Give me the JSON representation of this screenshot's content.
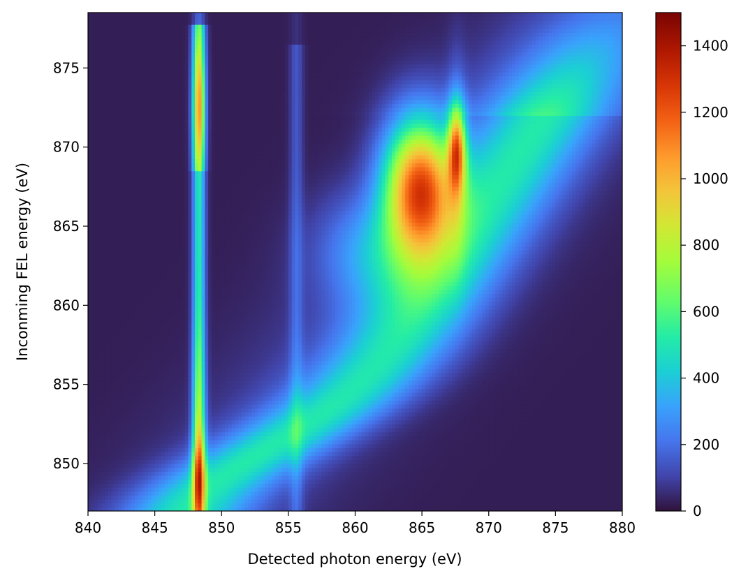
{
  "chart_data": {
    "type": "heatmap",
    "title": "",
    "xlabel": "Detected photon energy (eV)",
    "ylabel": "Inconming FEL energy (eV)",
    "xlim": [
      840,
      880
    ],
    "ylim": [
      847,
      878.5
    ],
    "xticks": [
      "840",
      "845",
      "850",
      "855",
      "860",
      "865",
      "870",
      "875",
      "880"
    ],
    "yticks": [
      "850",
      "855",
      "860",
      "865",
      "870",
      "875"
    ],
    "colorbar": {
      "range": [
        0,
        1500
      ],
      "ticks": [
        "0",
        "200",
        "400",
        "600",
        "800",
        "1000",
        "1200",
        "1400"
      ],
      "colormap": "turbo"
    },
    "grid": false,
    "features": [
      {
        "kind": "vertical-line",
        "x": 848.3,
        "y_range": [
          847,
          878.5
        ],
        "peak_intensity": 1050
      },
      {
        "kind": "vertical-line",
        "x": 867.6,
        "y_range": [
          864,
          875
        ],
        "peak_intensity": 850
      },
      {
        "kind": "vertical-line",
        "x": 855.6,
        "y_range": [
          847,
          878
        ],
        "peak_intensity": 250
      },
      {
        "kind": "diagonal-band",
        "from": [
          845,
          847
        ],
        "to": [
          878,
          878
        ],
        "peak_intensity": 450
      },
      {
        "kind": "peak",
        "x": 865.0,
        "y": 867.8,
        "peak_intensity": 1480
      }
    ]
  }
}
